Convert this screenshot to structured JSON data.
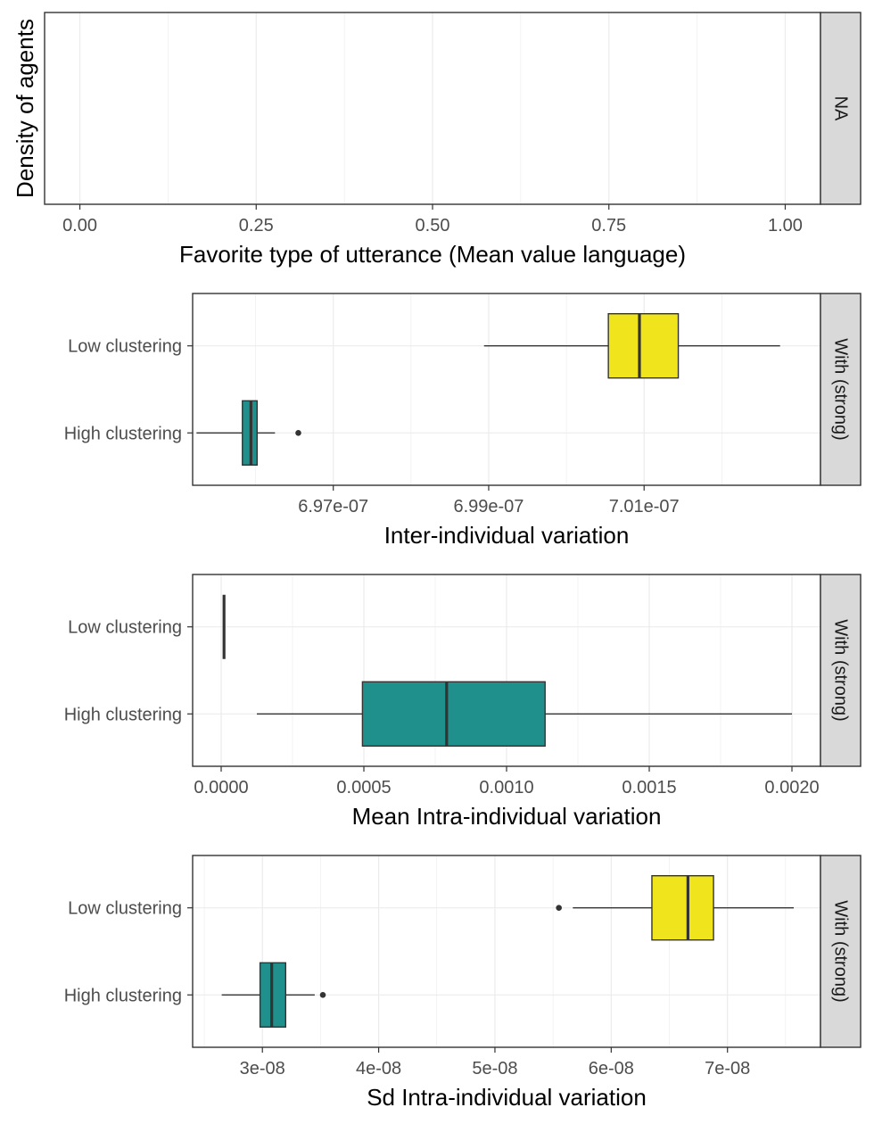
{
  "colors": {
    "low_clustering": "#F0E51D",
    "high_clustering": "#20908C",
    "strip_fill": "#D9D9D9",
    "grid": "#EBEBEB",
    "frame": "#333333",
    "tick_text": "#4D4D4D",
    "axis_title": "#000000"
  },
  "chart_data": [
    {
      "type": "density",
      "title": "",
      "xlabel": "Favorite type of utterance (Mean value language)",
      "ylabel": "Density of agents",
      "strip_label": "NA",
      "xlim": [
        -0.05,
        1.05
      ],
      "x_ticks": [
        0,
        0.25,
        0.5,
        0.75,
        1.0
      ],
      "x_tick_labels": [
        "0.00",
        "0.25",
        "0.50",
        "0.75",
        "1.00"
      ],
      "grid": true,
      "series": []
    },
    {
      "type": "boxplot",
      "title": "",
      "xlabel": "Inter-individual variation",
      "ylabel": "",
      "strip_label": "With (strong)",
      "xlim": [
        6.9519e-07,
        7.0327e-07
      ],
      "x_ticks": [
        6.97e-07,
        6.99e-07,
        7.01e-07
      ],
      "x_tick_labels": [
        "6.97e-07",
        "6.99e-07",
        "7.01e-07"
      ],
      "grid": true,
      "categories": [
        "Low clustering",
        "High clustering"
      ],
      "boxes": [
        {
          "group": "Low clustering",
          "whisker_low": 6.9894e-07,
          "q1": 7.0054e-07,
          "median": 7.0094e-07,
          "q3": 7.0144e-07,
          "whisker_high": 7.0275e-07,
          "outliers": []
        },
        {
          "group": "High clustering",
          "whisker_low": 6.9524e-07,
          "q1": 6.9583e-07,
          "median": 6.9594e-07,
          "q3": 6.9602e-07,
          "whisker_high": 6.9625e-07,
          "outliers": [
            6.9655e-07
          ]
        }
      ]
    },
    {
      "type": "boxplot",
      "title": "",
      "xlabel": "Mean Intra-individual variation",
      "ylabel": "",
      "strip_label": "With (strong)",
      "xlim": [
        -0.0001,
        0.0021
      ],
      "x_ticks": [
        0,
        0.0005,
        0.001,
        0.0015,
        0.002
      ],
      "x_tick_labels": [
        "0.0000",
        "0.0005",
        "0.0010",
        "0.0015",
        "0.0020"
      ],
      "grid": true,
      "categories": [
        "Low clustering",
        "High clustering"
      ],
      "boxes": [
        {
          "group": "Low clustering",
          "whisker_low": 1e-05,
          "q1": 1e-05,
          "median": 1e-05,
          "q3": 1e-05,
          "whisker_high": 1e-05,
          "outliers": []
        },
        {
          "group": "High clustering",
          "whisker_low": 0.000125,
          "q1": 0.000495,
          "median": 0.00079,
          "q3": 0.001135,
          "whisker_high": 0.002,
          "outliers": []
        }
      ]
    },
    {
      "type": "boxplot",
      "title": "",
      "xlabel": "Sd Intra-individual variation",
      "ylabel": "",
      "strip_label": "With (strong)",
      "xlim": [
        2.4e-08,
        7.8e-08
      ],
      "x_ticks": [
        3e-08,
        4e-08,
        5e-08,
        6e-08,
        7e-08
      ],
      "x_tick_labels": [
        "3e-08",
        "4e-08",
        "5e-08",
        "6e-08",
        "7e-08"
      ],
      "grid": true,
      "categories": [
        "Low clustering",
        "High clustering"
      ],
      "boxes": [
        {
          "group": "Low clustering",
          "whisker_low": 5.67e-08,
          "q1": 6.35e-08,
          "median": 6.66e-08,
          "q3": 6.88e-08,
          "whisker_high": 7.57e-08,
          "outliers": [
            5.55e-08
          ]
        },
        {
          "group": "High clustering",
          "whisker_low": 2.65e-08,
          "q1": 2.98e-08,
          "median": 3.08e-08,
          "q3": 3.2e-08,
          "whisker_high": 3.45e-08,
          "outliers": [
            3.52e-08
          ]
        }
      ]
    }
  ]
}
